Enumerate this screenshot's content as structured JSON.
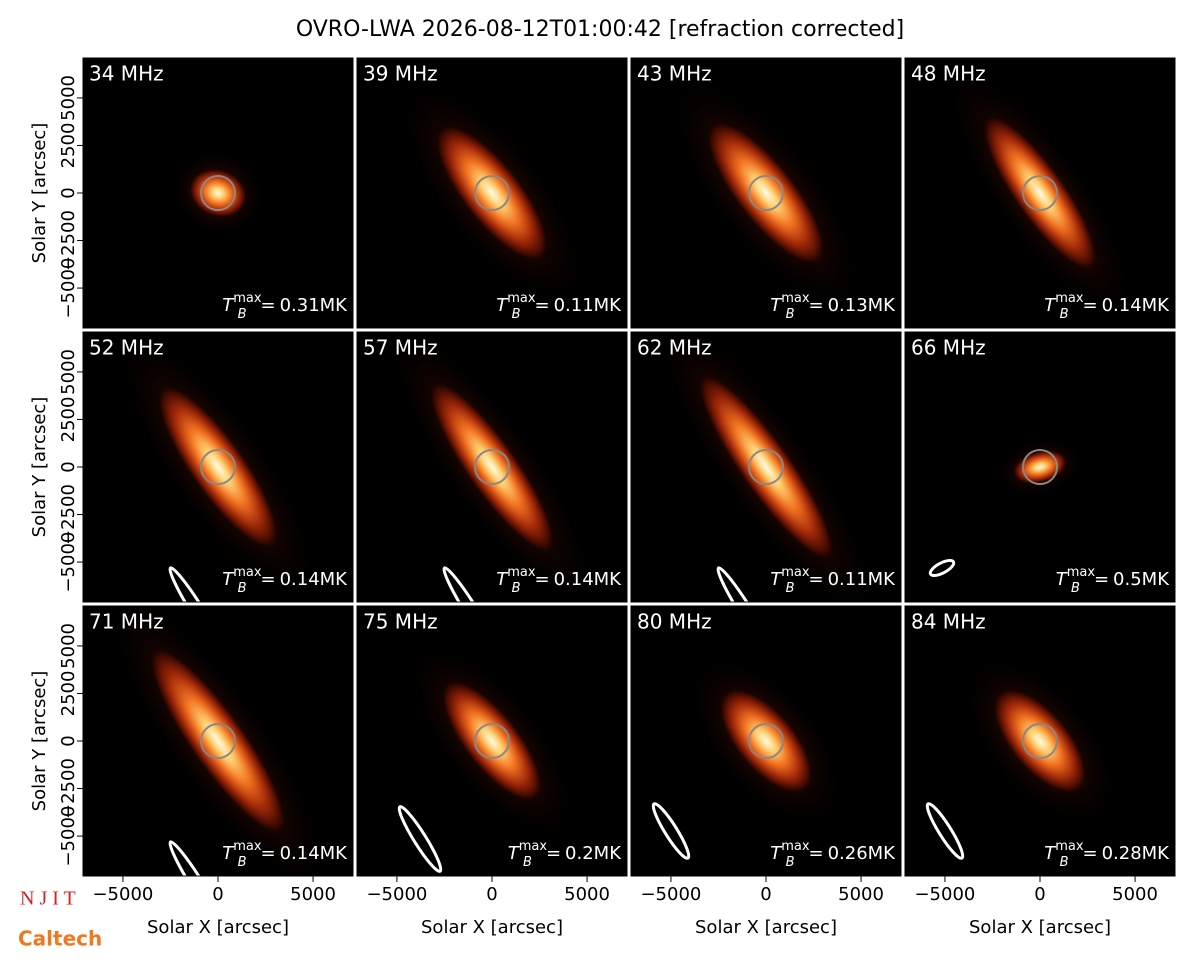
{
  "chart_data": {
    "type": "image_grid",
    "title": "OVRO-LWA 2026-08-12T01:00:42 [refraction corrected]",
    "xlabel": "Solar X [arcsec]",
    "ylabel": "Solar Y [arcsec]",
    "xlim": [
      -7100,
      7100
    ],
    "ylim": [
      -7100,
      7100
    ],
    "xticks": [
      {
        "value": -5000,
        "label": "−5000"
      },
      0,
      5000
    ],
    "yticks": [
      {
        "value": -5000,
        "label": "−5000"
      },
      {
        "value": -2500,
        "label": "−2500"
      },
      0,
      2500,
      5000
    ],
    "tb_symbol": {
      "main": "T",
      "sub": "B",
      "sup": "max",
      "equals": "="
    },
    "panels": [
      {
        "frequency": "34 MHz",
        "tb_max": "0.31MK"
      },
      {
        "frequency": "39 MHz",
        "tb_max": "0.11MK"
      },
      {
        "frequency": "43 MHz",
        "tb_max": "0.13MK"
      },
      {
        "frequency": "48 MHz",
        "tb_max": "0.14MK"
      },
      {
        "frequency": "52 MHz",
        "tb_max": "0.14MK"
      },
      {
        "frequency": "57 MHz",
        "tb_max": "0.14MK"
      },
      {
        "frequency": "62 MHz",
        "tb_max": "0.11MK"
      },
      {
        "frequency": "66 MHz",
        "tb_max": "0.5MK"
      },
      {
        "frequency": "71 MHz",
        "tb_max": "0.14MK"
      },
      {
        "frequency": "75 MHz",
        "tb_max": "0.2MK"
      },
      {
        "frequency": "80 MHz",
        "tb_max": "0.26MK"
      },
      {
        "frequency": "84 MHz",
        "tb_max": "0.28MK"
      }
    ]
  },
  "logos": {
    "njit": "N J I T",
    "caltech": "Caltech"
  }
}
